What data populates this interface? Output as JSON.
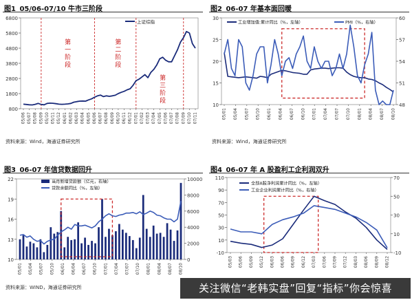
{
  "colors": {
    "navy": "#1a2b7a",
    "blue": "#3b5cb8",
    "red": "#cc2a2a",
    "bars": "#1a2b7a"
  },
  "watermark": {
    "text": "关注微信“老韩实盘”回复“指标”你会惊喜"
  },
  "chart_data": [
    {
      "id": "fig1",
      "type": "line",
      "fig_no": "图1",
      "title": "05/06-07/10 牛市三阶段",
      "source": "资料来源：Wind，海通证券研究所",
      "legend": [
        "上证综指"
      ],
      "ylim": [
        800,
        6800
      ],
      "yticks": [
        800,
        1800,
        2800,
        3800,
        4800,
        5800,
        6800
      ],
      "y_tick_labels": [
        "800",
        "1800",
        "2800",
        "3800",
        "4800",
        "5800",
        "6800"
      ],
      "x_tick_labels": [
        "05/06",
        "05/07",
        "05/08",
        "05/09",
        "05/10",
        "05/11",
        "05/12",
        "06/01",
        "06/02",
        "06/03",
        "06/04",
        "06/05",
        "06/06",
        "06/07",
        "06/08",
        "06/09",
        "06/10",
        "06/11",
        "06/12",
        "07/01",
        "07/02",
        "07/03",
        "07/04",
        "07/05",
        "07/06",
        "07/07",
        "07/08",
        "07/09",
        "07/10",
        "07/11"
      ],
      "series": [
        {
          "name": "上证综指",
          "x": [
            0,
            0.5,
            1,
            1.5,
            2,
            2.5,
            3,
            3.5,
            4,
            4.5,
            5,
            5.5,
            6,
            6.5,
            7,
            7.5,
            8,
            8.5,
            9,
            9.5,
            10,
            10.5,
            11,
            11.5,
            12,
            12.5,
            13,
            13.5,
            14,
            14.5,
            15,
            15.5,
            16,
            16.5,
            17,
            17.5,
            18,
            18.5,
            19,
            19.5,
            20,
            20.5,
            21,
            21.5,
            22,
            22.5,
            23,
            23.5,
            24,
            24.5,
            25,
            25.5,
            26,
            26.5,
            27,
            27.5,
            28,
            28.5,
            29
          ],
          "values": [
            1100,
            1080,
            1060,
            1050,
            1090,
            1150,
            1080,
            1060,
            1150,
            1170,
            1160,
            1130,
            1100,
            1090,
            1100,
            1120,
            1150,
            1230,
            1270,
            1300,
            1310,
            1300,
            1380,
            1450,
            1560,
            1650,
            1700,
            1600,
            1650,
            1620,
            1650,
            1690,
            1800,
            1880,
            1950,
            2050,
            2120,
            2350,
            2650,
            2750,
            2900,
            3050,
            2850,
            3200,
            3400,
            3700,
            4100,
            4200,
            4000,
            3900,
            3900,
            4300,
            4700,
            5200,
            5500,
            5900,
            5800,
            5100,
            4800
          ]
        }
      ],
      "annotations": [
        "第一阶段",
        "第二阶段",
        "第三阶段"
      ],
      "stage_lines_x": [
        3,
        12,
        19,
        27
      ]
    },
    {
      "id": "fig2",
      "type": "line",
      "fig_no": "图2",
      "title": "06-07 年基本面回暖",
      "source": "资料来源：Wind，海通证券研究所",
      "legend": [
        "工业增加值:累计同比（%，左轴）",
        "PMI（%，右轴）"
      ],
      "ylim_left": [
        10,
        30
      ],
      "ylim_right": [
        48,
        60
      ],
      "yticks_left": [
        10,
        15,
        20,
        25,
        30
      ],
      "yticks_right": [
        48,
        51,
        54,
        57,
        60
      ],
      "x_tick_labels": [
        "05/01",
        "05/04",
        "05/07",
        "05/10",
        "06/01",
        "06/04",
        "06/07",
        "06/10",
        "07/01",
        "07/04",
        "07/07",
        "07/10",
        "08/01",
        "08/04",
        "08/07",
        "08/10"
      ],
      "series": [
        {
          "name": "工业增加值:累计同比（%，左轴）",
          "axis": "left",
          "x": [
            0,
            1,
            2,
            3,
            4,
            5,
            6,
            7,
            8,
            9,
            10,
            11,
            12,
            13,
            14,
            15,
            16,
            17,
            18,
            19,
            20,
            21,
            22,
            23,
            24,
            25,
            26,
            27,
            28,
            29,
            30,
            31,
            32,
            33,
            34,
            35,
            36,
            37,
            38,
            39,
            40,
            41,
            42,
            43,
            44,
            45,
            46,
            47
          ],
          "values": [
            22,
            16.5,
            16.4,
            16.3,
            16.2,
            16.3,
            16.4,
            16.3,
            16.2,
            16.1,
            16.5,
            16.4,
            16.2,
            17,
            17.3,
            17.6,
            17.9,
            17.8,
            17.6,
            17.4,
            17.3,
            17.2,
            17,
            17,
            18,
            18.2,
            18.3,
            18.4,
            18.4,
            18.3,
            18.4,
            18.5,
            18.5,
            18.4,
            17.5,
            16.9,
            16.5,
            16.3,
            16.2,
            16.2,
            15.9,
            15.8,
            15.5,
            15,
            14.6,
            14,
            13.5,
            12.9
          ]
        },
        {
          "name": "PMI（%，右轴）",
          "axis": "right",
          "x": [
            0,
            1,
            2,
            3,
            4,
            5,
            6,
            7,
            8,
            9,
            10,
            11,
            12,
            13,
            14,
            15,
            16,
            17,
            18,
            19,
            20,
            21,
            22,
            23,
            24,
            25,
            26,
            27,
            28,
            29,
            30,
            31,
            32,
            33,
            34,
            35,
            36,
            37,
            38,
            39,
            40,
            41,
            42,
            43,
            44,
            45,
            46,
            47
          ],
          "values": [
            55,
            57,
            53,
            52,
            57,
            56,
            51,
            50,
            52,
            55,
            56,
            56,
            51,
            53.5,
            57,
            55,
            52,
            54,
            54.5,
            53,
            55,
            56,
            57.5,
            54,
            53,
            56,
            54,
            53,
            54,
            54,
            52,
            53,
            55,
            53,
            55,
            59,
            56,
            52,
            51,
            53.5,
            55,
            58,
            50,
            48,
            48.5,
            45,
            47,
            50
          ]
        }
      ]
    },
    {
      "id": "fig3",
      "type": "bar",
      "fig_no": "图3",
      "title": "06-07 年信贷数据回升",
      "source": "资料来源：WIND，海通证券研究所",
      "legend": [
        "当月新增贷款额（亿元，右轴）",
        "贷款余额同比（%，左轴）"
      ],
      "ylim_left": [
        10,
        22
      ],
      "ylim_right": [
        0,
        10000
      ],
      "yticks_left": [
        10,
        13,
        16,
        19,
        22
      ],
      "yticks_right": [
        0,
        2000,
        4000,
        6000,
        8000,
        10000
      ],
      "x_tick_labels": [
        "05/01",
        "05/04",
        "05/07",
        "05/10",
        "06/01",
        "06/04",
        "06/07",
        "06/10",
        "07/01",
        "07/04",
        "07/07",
        "07/10",
        "08/01",
        "08/04",
        "08/07",
        "08/10"
      ],
      "series": [
        {
          "name": "当月新增贷款额（亿元，右轴）",
          "axis": "right",
          "x": [
            0,
            1,
            2,
            3,
            4,
            5,
            6,
            7,
            8,
            9,
            10,
            11,
            12,
            13,
            14,
            15,
            16,
            17,
            18,
            19,
            20,
            21,
            22,
            23,
            24,
            25,
            26,
            27,
            28,
            29,
            30,
            31,
            32,
            33,
            34,
            35,
            36,
            37,
            38,
            39,
            40,
            41,
            42,
            43,
            44,
            45,
            46,
            47
          ],
          "values": [
            2500,
            3000,
            1600,
            2200,
            2000,
            1500,
            2500,
            900,
            1800,
            4000,
            3200,
            3400,
            6000,
            1500,
            2800,
            2400,
            2500,
            4600,
            2000,
            2700,
            1800,
            2300,
            2000,
            4000,
            7500,
            2800,
            3800,
            3000,
            3500,
            4400,
            3700,
            3300,
            2900,
            2400,
            1400,
            2700,
            8000,
            3800,
            2800,
            4200,
            3200,
            3300,
            2800,
            4500,
            3700,
            2300,
            3600,
            9500
          ]
        },
        {
          "name": "贷款余额同比（%，左轴）",
          "axis": "left",
          "x": [
            0,
            1,
            2,
            3,
            4,
            5,
            6,
            7,
            8,
            9,
            10,
            11,
            12,
            13,
            14,
            15,
            16,
            17,
            18,
            19,
            20,
            21,
            22,
            23,
            24,
            25,
            26,
            27,
            28,
            29,
            30,
            31,
            32,
            33,
            34,
            35,
            36,
            37,
            38,
            39,
            40,
            41,
            42,
            43,
            44,
            45,
            46,
            47
          ],
          "values": [
            13.6,
            13.7,
            13.3,
            13.5,
            13,
            12.7,
            12.8,
            12.3,
            12.7,
            12.9,
            13,
            13.6,
            14.1,
            14.4,
            14.8,
            14.5,
            15.2,
            15,
            15,
            15.1,
            14.9,
            14.7,
            15,
            15.6,
            16,
            16.5,
            16.8,
            16.5,
            16.4,
            16.6,
            16.7,
            16.9,
            16.9,
            17,
            16.8,
            17.1,
            16.7,
            16.9,
            17.2,
            17,
            16.6,
            16.5,
            16.2,
            16,
            16,
            15.6,
            16,
            18.7
          ]
        }
      ]
    },
    {
      "id": "fig4",
      "type": "line",
      "fig_no": "图4",
      "title": "06-07 年 A 股盈利工企利润双升",
      "source": "资料来源：Wind，海通证券研究所",
      "legend": [
        "全部A股净利润累计同比（%，左轴）",
        "工业企业利润累计同比（%，右轴）"
      ],
      "ylim_left": [
        -10,
        110
      ],
      "ylim_right": [
        -10,
        70
      ],
      "yticks_left": [
        -10,
        10,
        30,
        50,
        70,
        90,
        110
      ],
      "yticks_right": [
        -10,
        10,
        30,
        50,
        70
      ],
      "x_tick_labels": [
        "05/03",
        "05/06",
        "05/09",
        "05/12",
        "06/03",
        "06/06",
        "06/09",
        "06/12",
        "07/03",
        "07/06",
        "07/09",
        "07/12",
        "08/03",
        "08/06",
        "08/09",
        "08/12"
      ],
      "series": [
        {
          "name": "全部A股净利润累计同比（%，左轴）",
          "axis": "left",
          "x": [
            0,
            1,
            2,
            3,
            4,
            5,
            6,
            7,
            8,
            9,
            10,
            11,
            12,
            13,
            14,
            15
          ],
          "values": [
            8,
            5,
            3,
            -2,
            2,
            12,
            35,
            58,
            80,
            73,
            67,
            55,
            45,
            30,
            10,
            -5
          ]
        },
        {
          "name": "工业企业利润累计同比（%，右轴）",
          "axis": "right",
          "x": [
            0,
            1,
            2,
            3,
            4,
            5,
            6,
            7,
            8,
            9,
            10,
            11,
            12,
            13,
            14,
            15
          ],
          "values": [
            15,
            12,
            12,
            10,
            20,
            25,
            28,
            32,
            40,
            38,
            36,
            32,
            28,
            22,
            14,
            -5
          ]
        }
      ]
    }
  ]
}
